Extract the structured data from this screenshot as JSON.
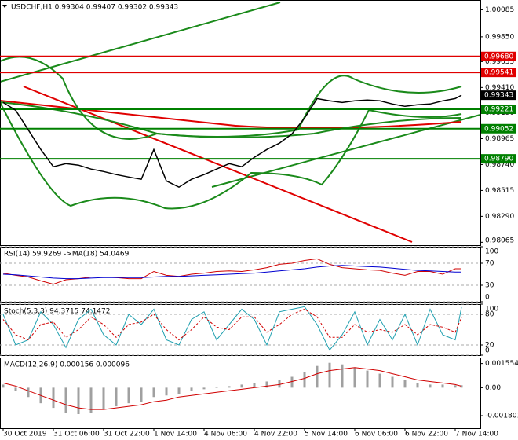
{
  "chart_data": [
    {
      "type": "line",
      "title": "USDCHF,H1  0.99304 0.99407 0.99302 0.99343",
      "x": [
        0,
        4,
        8,
        12,
        16,
        20,
        24,
        28,
        32,
        36,
        40,
        44,
        48,
        52,
        56,
        60,
        64,
        68,
        72,
        76,
        80,
        84,
        88,
        92,
        96,
        100,
        104,
        108,
        112,
        116,
        120,
        124,
        128,
        132,
        136,
        140,
        144,
        146
      ],
      "xlim": [
        -1,
        152
      ],
      "xticks": [
        {
          "value": 0,
          "label": "30 Oct 2019"
        },
        {
          "value": 16,
          "label": "31 Oct 06:00"
        },
        {
          "value": 32,
          "label": "31 Oct 22:00"
        },
        {
          "value": 48,
          "label": "1 Nov 14:00"
        },
        {
          "value": 64,
          "label": "4 Nov 06:00"
        },
        {
          "value": 80,
          "label": "4 Nov 22:00"
        },
        {
          "value": 96,
          "label": "5 Nov 14:00"
        },
        {
          "value": 112,
          "label": "6 Nov 06:00"
        },
        {
          "value": 128,
          "label": "6 Nov 22:00"
        },
        {
          "value": 144,
          "label": "7 Nov 14:00"
        }
      ],
      "ylim": [
        0.9804,
        1.0017
      ],
      "yticks": [
        1.00085,
        {
          "value": 0.9985,
          "label": "0.99850"
        },
        0.99635,
        {
          "value": 0.9941,
          "label": "0.99410"
        },
        {
          "value": 0.9919,
          "label": "0.99190"
        },
        0.98965,
        {
          "value": 0.9874,
          "label": "0.98740"
        },
        0.98515,
        {
          "value": 0.9829,
          "label": "0.98290"
        },
        0.98065
      ],
      "series": [
        {
          "color": "#000000",
          "values": [
            0.9928,
            0.99212,
            0.99042,
            0.98871,
            0.98721,
            0.98748,
            0.98735,
            0.98701,
            0.9868,
            0.98653,
            0.98632,
            0.98612,
            0.98871,
            0.98598,
            0.98544,
            0.98612,
            0.98653,
            0.98701,
            0.98748,
            0.98721,
            0.98803,
            0.98871,
            0.98926,
            0.99007,
            0.99144,
            0.99314,
            0.99294,
            0.9928,
            0.99294,
            0.99301,
            0.99294,
            0.99267,
            0.99246,
            0.9926,
            0.99267,
            0.99294,
            0.99314,
            0.99343
          ]
        }
      ],
      "levels": [
        {
          "value": 0.9968,
          "label": "0.99680",
          "color": "#e00000",
          "line": true
        },
        {
          "value": 0.99541,
          "label": "0.99541",
          "color": "#e00000",
          "line": true
        },
        {
          "value": 0.99343,
          "color": "#000000",
          "line": false
        },
        {
          "value": 0.99221,
          "label": "0.99221",
          "color": "#008000",
          "line": true
        },
        {
          "value": 0.99052,
          "label": "0.99052",
          "color": "#008000",
          "line": true
        },
        {
          "value": 0.9879,
          "label": "0.98790",
          "color": "#008000",
          "line": true
        }
      ]
    },
    {
      "type": "line",
      "title": "RSI(14) 59.9269 ->MA(18) 54.0469",
      "ylim": [
        0,
        100
      ],
      "yticks": [
        0,
        30,
        70,
        100
      ],
      "series": [
        {
          "color": "#d00000",
          "values": [
            52,
            48,
            45,
            38,
            32,
            40,
            42,
            45,
            45,
            44,
            42,
            42,
            55,
            48,
            46,
            50,
            52,
            55,
            56,
            55,
            58,
            62,
            68,
            70,
            75,
            78,
            68,
            62,
            60,
            58,
            57,
            52,
            48,
            55,
            55,
            50,
            60,
            60
          ]
        },
        {
          "color": "#0000d0",
          "values": [
            50,
            49,
            47,
            45,
            43,
            42,
            42,
            43,
            44,
            44,
            44,
            44,
            45,
            46,
            46,
            47,
            48,
            49,
            50,
            51,
            52,
            54,
            56,
            58,
            60,
            63,
            65,
            66,
            65,
            64,
            63,
            61,
            59,
            57,
            56,
            55,
            54,
            54
          ]
        }
      ]
    },
    {
      "type": "line",
      "title": "Stoch(5,3,3) 94.3715 74.1472",
      "ylim": [
        0,
        100
      ],
      "yticks": [
        0,
        20,
        80,
        100
      ],
      "series": [
        {
          "color": "#20a0b0",
          "dash": false,
          "values": [
            80,
            20,
            30,
            85,
            60,
            15,
            70,
            90,
            40,
            20,
            80,
            60,
            90,
            30,
            20,
            70,
            85,
            30,
            60,
            90,
            70,
            20,
            85,
            90,
            95,
            60,
            10,
            40,
            85,
            20,
            70,
            30,
            80,
            20,
            90,
            40,
            30,
            94
          ]
        },
        {
          "color": "#d00000",
          "dash": true,
          "values": [
            70,
            40,
            30,
            60,
            65,
            35,
            50,
            75,
            60,
            35,
            60,
            65,
            80,
            50,
            30,
            50,
            75,
            55,
            50,
            75,
            75,
            45,
            60,
            80,
            90,
            75,
            35,
            35,
            60,
            45,
            50,
            45,
            60,
            40,
            60,
            55,
            45,
            74
          ]
        }
      ]
    },
    {
      "type": "bar",
      "title": "MACD(12,26,9) 0.000156 0.000096",
      "ylim": [
        -0.00261,
        0.00194
      ],
      "yticks": [
        -0.001801,
        {
          "value": 0,
          "label": "0.00"
        },
        0.001554
      ],
      "series": [
        {
          "type": "bar",
          "color": "#a0a0a0",
          "values": [
            0.0002,
            -0.0002,
            -0.0006,
            -0.001,
            -0.0013,
            -0.0016,
            -0.0017,
            -0.0016,
            -0.0014,
            -0.0012,
            -0.001,
            -0.0009,
            -0.0006,
            -0.0005,
            -0.0004,
            -0.0002,
            -0.0001,
            0,
            0.0001,
            0.0002,
            0.0003,
            0.0004,
            0.0005,
            0.0007,
            0.001,
            0.0014,
            0.0016,
            0.0015,
            0.0013,
            0.0011,
            0.0009,
            0.0007,
            0.0005,
            0.0003,
            0.0002,
            0.0002,
            0.00015,
            0.000156
          ]
        },
        {
          "type": "line",
          "color": "#d00000",
          "values": [
            0.0003,
            0.0001,
            -0.0002,
            -0.0005,
            -0.0008,
            -0.0011,
            -0.0013,
            -0.0014,
            -0.0014,
            -0.0013,
            -0.0012,
            -0.0011,
            -0.0009,
            -0.0008,
            -0.0006,
            -0.0005,
            -0.0004,
            -0.0003,
            -0.0002,
            -0.0001,
            0,
            0.0001,
            0.0002,
            0.0004,
            0.0006,
            0.0009,
            0.0011,
            0.0012,
            0.0013,
            0.0012,
            0.0011,
            0.0009,
            0.0007,
            0.0005,
            0.0004,
            0.0003,
            0.0002,
            9.6e-05
          ]
        }
      ]
    }
  ]
}
